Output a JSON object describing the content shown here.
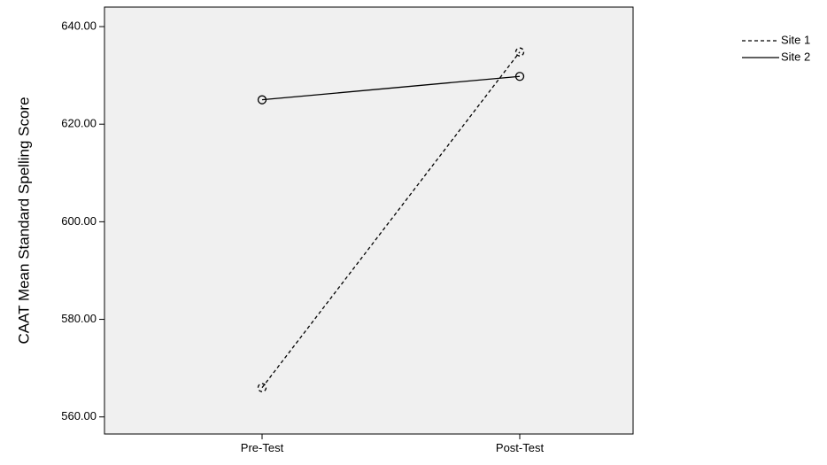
{
  "chart_data": {
    "type": "line",
    "title": "",
    "xlabel": "",
    "ylabel": "CAAT Mean Standard Spelling Score",
    "categories": [
      "Pre-Test",
      "Post-Test"
    ],
    "ylim": [
      556.5,
      644
    ],
    "yticks": [
      560,
      580,
      600,
      620,
      640
    ],
    "ytick_labels": [
      "560.00",
      "580.00",
      "600.00",
      "620.00",
      "640.00"
    ],
    "grid": false,
    "legend_position": "top-right, outside plot",
    "plot_background": "#f0f0f0",
    "series": [
      {
        "name": "Site 1",
        "values": [
          566.0,
          634.8
        ],
        "line_style": "dashed",
        "color": "#000000"
      },
      {
        "name": "Site 2",
        "values": [
          625.0,
          629.8
        ],
        "line_style": "solid",
        "color": "#000000"
      }
    ]
  }
}
